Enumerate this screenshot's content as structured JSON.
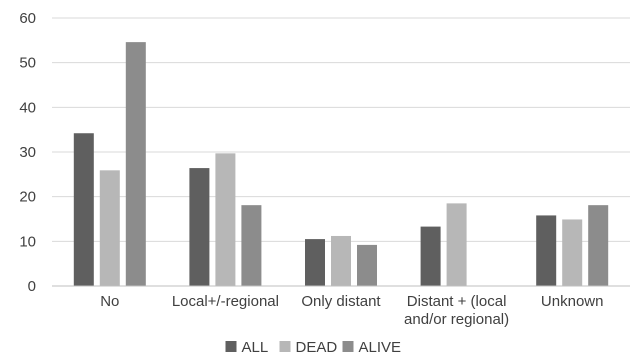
{
  "chart_data": {
    "type": "bar",
    "categories": [
      [
        "No"
      ],
      [
        "Local+/-regional"
      ],
      [
        "Only distant"
      ],
      [
        "Distant + (local",
        "and/or regional)"
      ],
      [
        "Unknown"
      ]
    ],
    "series": [
      {
        "name": "ALL",
        "color": "#5f5f5f",
        "values": [
          34.2,
          26.4,
          10.5,
          13.3,
          15.8
        ]
      },
      {
        "name": "DEAD",
        "color": "#b7b7b7",
        "values": [
          25.9,
          29.7,
          11.2,
          18.5,
          14.9
        ]
      },
      {
        "name": "ALIVE",
        "color": "#8c8c8c",
        "values": [
          54.6,
          18.1,
          9.2,
          0,
          18.1
        ]
      }
    ],
    "ylim": [
      0,
      60
    ],
    "yticks": [
      0,
      10,
      20,
      30,
      40,
      50,
      60
    ],
    "grid": true,
    "legend": "bottom-center",
    "title": "",
    "xlabel": "",
    "ylabel": ""
  }
}
